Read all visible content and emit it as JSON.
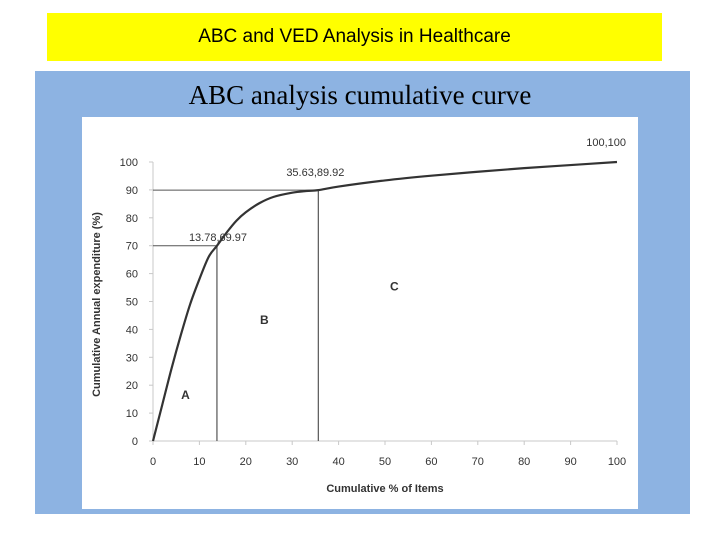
{
  "banner": {
    "title": "ABC and VED Analysis in Healthcare"
  },
  "colors": {
    "banner_bg": "#ffff00",
    "panel_bg": "#8db3e2",
    "plot_bg": "#ffffff",
    "curve": "#333333"
  },
  "chart_data": {
    "type": "line",
    "title": "ABC analysis cumulative curve",
    "xlabel": "Cumulative % of Items",
    "ylabel": "Cumulative Annual expenditure (%)",
    "xlim": [
      0,
      100
    ],
    "ylim": [
      0,
      100
    ],
    "xticks": [
      0,
      10,
      20,
      30,
      40,
      50,
      60,
      70,
      80,
      90,
      100
    ],
    "yticks": [
      0,
      10,
      20,
      30,
      40,
      50,
      60,
      70,
      80,
      90,
      100
    ],
    "grid": false,
    "series": [
      {
        "x": [
          0,
          2,
          4,
          6,
          8,
          10,
          12,
          13.78,
          16,
          18,
          20,
          23,
          26,
          30,
          33,
          35.63,
          40,
          50,
          60,
          70,
          80,
          90,
          100
        ],
        "y": [
          0,
          13,
          26,
          38,
          49,
          58,
          66,
          69.97,
          75,
          79,
          82,
          85.3,
          87.5,
          89,
          89.6,
          89.92,
          91.2,
          93.4,
          95.1,
          96.5,
          97.8,
          98.9,
          100
        ]
      }
    ],
    "annotations": [
      {
        "text": "13.78,69.97",
        "x": 13.78,
        "y": 69.97
      },
      {
        "text": "35.63,89.92",
        "x": 35.63,
        "y": 89.92
      },
      {
        "text": "100,100",
        "x": 100,
        "y": 100
      }
    ],
    "reference_lines": [
      {
        "x": 13.78,
        "y": 69.97
      },
      {
        "x": 35.63,
        "y": 89.92
      }
    ],
    "region_labels": [
      {
        "text": "A",
        "x": 7,
        "y": 15
      },
      {
        "text": "B",
        "x": 24,
        "y": 42
      },
      {
        "text": "C",
        "x": 52,
        "y": 54
      }
    ]
  }
}
